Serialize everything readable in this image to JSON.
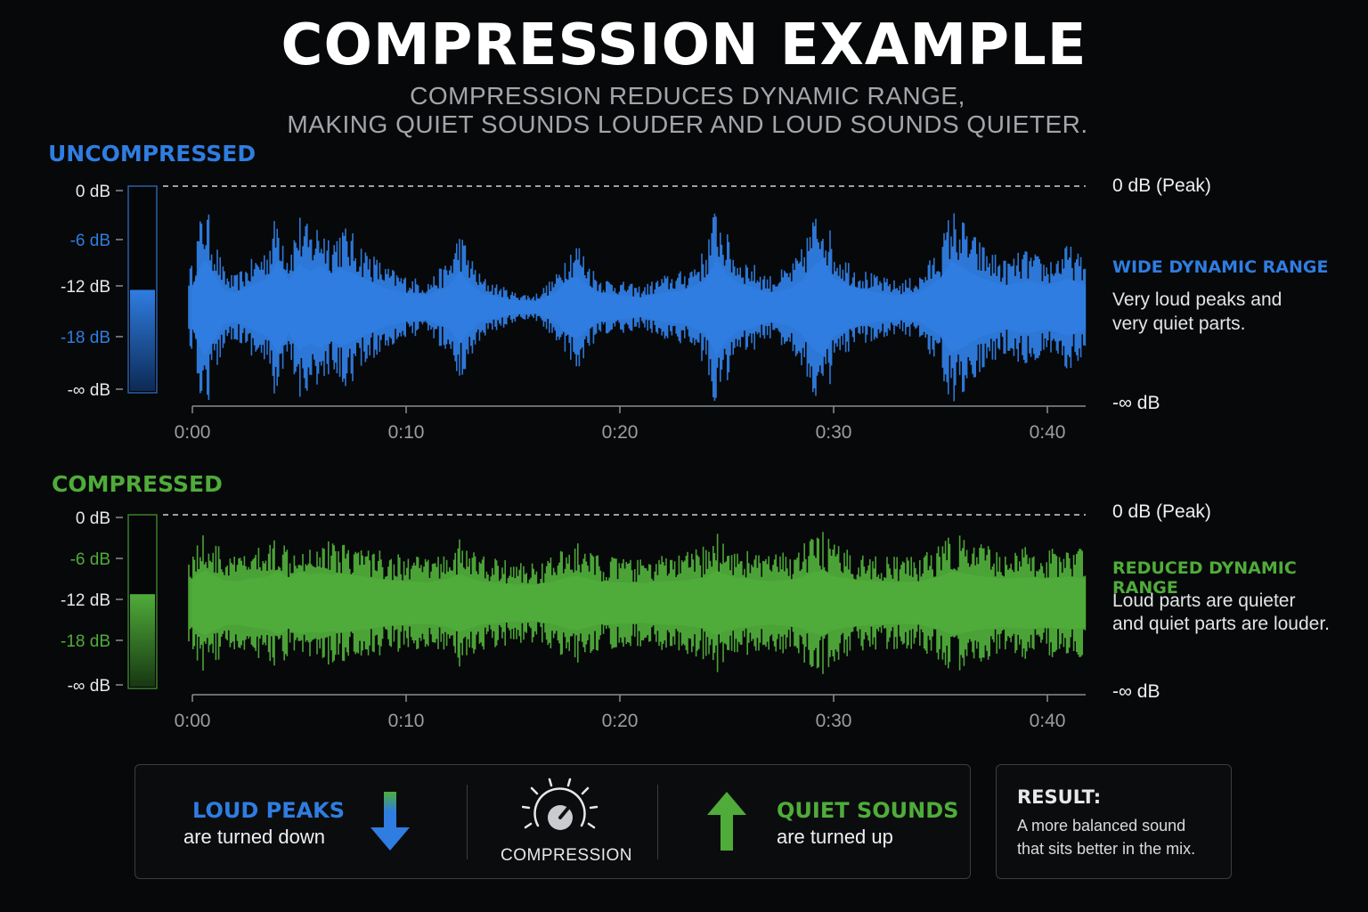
{
  "title": "COMPRESSION EXAMPLE",
  "subtitle": {
    "line1": "COMPRESSION REDUCES DYNAMIC RANGE,",
    "line2": "MAKING QUIET SOUNDS LOUDER AND LOUD SOUNDS QUIETER."
  },
  "colors": {
    "background": "#070809",
    "uncompressed": "#2f7de1",
    "compressed": "#4fac3a",
    "axis": "#8a8d92",
    "peak_line": "#d0d2d5"
  },
  "chart_data": [
    {
      "type": "area",
      "title": "UNCOMPRESSED",
      "ylabel_ticks": [
        "0 dB",
        "-6 dB",
        "-12 dB",
        "-18 dB",
        "-∞ dB"
      ],
      "ytick_colors": [
        "#e6e8ea",
        "#2f7de1",
        "#e6e8ea",
        "#2f7de1",
        "#e6e8ea"
      ],
      "xticks": [
        "0:00",
        "0:10",
        "0:20",
        "0:30",
        "0:40"
      ],
      "xlim": [
        0,
        42
      ],
      "peak_line_label": "0 dB (Peak)",
      "floor_label": "-∞ dB",
      "meter_level_db": -12,
      "annotation_heading": "WIDE DYNAMIC RANGE",
      "annotation_text": [
        "Very loud peaks and",
        "very quiet parts."
      ],
      "envelope": {
        "t": [
          0,
          0.3,
          0.6,
          1,
          1.5,
          2,
          3.5,
          4,
          4.5,
          5,
          5.5,
          6,
          6.5,
          7,
          8,
          9,
          10,
          11,
          12,
          12.5,
          13,
          13.5,
          14,
          15,
          16,
          17,
          17.5,
          18,
          18.5,
          19,
          20,
          21,
          22,
          23,
          24,
          24.5,
          25,
          25.5,
          26,
          27,
          28,
          28.5,
          29,
          29.5,
          30,
          31,
          32,
          33,
          34,
          35,
          35.5,
          36,
          36.5,
          37,
          38,
          39,
          40,
          41,
          42
        ],
        "amp": [
          0.4,
          0.8,
          1.0,
          0.7,
          0.35,
          0.3,
          0.6,
          0.95,
          0.55,
          0.9,
          0.75,
          0.85,
          0.7,
          0.8,
          0.6,
          0.4,
          0.3,
          0.25,
          0.45,
          0.75,
          0.5,
          0.3,
          0.25,
          0.15,
          0.12,
          0.3,
          0.55,
          0.65,
          0.45,
          0.3,
          0.25,
          0.2,
          0.3,
          0.35,
          0.55,
          1.0,
          0.7,
          0.5,
          0.45,
          0.3,
          0.4,
          0.55,
          0.85,
          1.0,
          0.6,
          0.4,
          0.3,
          0.25,
          0.3,
          0.6,
          0.95,
          0.85,
          0.7,
          0.6,
          0.45,
          0.55,
          0.45,
          0.6,
          0.4
        ]
      }
    },
    {
      "type": "area",
      "title": "COMPRESSED",
      "ylabel_ticks": [
        "0 dB",
        "-6 dB",
        "-12 dB",
        "-18 dB",
        "-∞ dB"
      ],
      "ytick_colors": [
        "#e6e8ea",
        "#4fac3a",
        "#e6e8ea",
        "#4fac3a",
        "#e6e8ea"
      ],
      "xticks": [
        "0:00",
        "0:10",
        "0:20",
        "0:30",
        "0:40"
      ],
      "xlim": [
        0,
        42
      ],
      "peak_line_label": "0 dB (Peak)",
      "floor_label": "-∞ dB",
      "meter_level_db": -11,
      "annotation_heading": "REDUCED DYNAMIC RANGE",
      "annotation_text": [
        "Loud parts are quieter",
        "and quiet parts are louder."
      ],
      "envelope_note": "same shape as uncompressed, compressed toward a constant level"
    }
  ],
  "bottom": {
    "loud_heading": "LOUD PEAKS",
    "loud_sub": "are turned down",
    "knob_label": "COMPRESSION",
    "quiet_heading": "QUIET SOUNDS",
    "quiet_sub": "are turned up",
    "result_heading": "RESULT:",
    "result_line1": "A more balanced sound",
    "result_line2": "that sits better in the mix."
  }
}
